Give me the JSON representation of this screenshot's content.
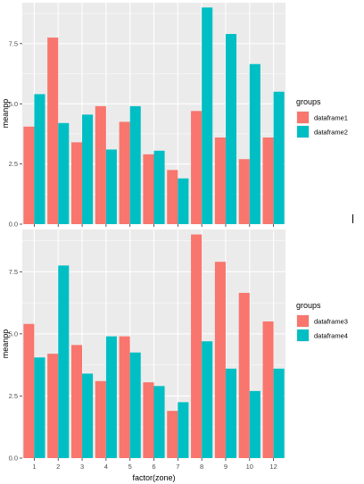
{
  "chart_data": [
    {
      "type": "bar",
      "categories": [
        "1",
        "2",
        "3",
        "4",
        "5",
        "6",
        "7",
        "8",
        "9",
        "10",
        "12"
      ],
      "xlabel": "",
      "ylabel": "meanpp",
      "ylim": [
        0,
        9.2
      ],
      "yticks": [
        0.0,
        2.5,
        5.0,
        7.5
      ],
      "ytick_labels": [
        "0.0",
        "2.5",
        "5.0",
        "7.5"
      ],
      "show_x_tick_labels": false,
      "grid": true,
      "legend": {
        "title": "groups",
        "position": "right"
      },
      "series": [
        {
          "name": "dataframe1",
          "color": "#F8766D",
          "values": [
            4.05,
            7.75,
            3.4,
            4.9,
            4.25,
            2.9,
            2.25,
            4.7,
            3.6,
            2.7,
            3.6
          ]
        },
        {
          "name": "dataframe2",
          "color": "#00BFC4",
          "values": [
            5.4,
            4.2,
            4.55,
            3.1,
            4.9,
            3.05,
            1.9,
            9.0,
            7.9,
            6.65,
            5.5
          ]
        }
      ]
    },
    {
      "type": "bar",
      "categories": [
        "1",
        "2",
        "3",
        "4",
        "5",
        "6",
        "7",
        "8",
        "9",
        "10",
        "12"
      ],
      "xlabel": "factor(zone)",
      "ylabel": "meanpp",
      "ylim": [
        0,
        9.2
      ],
      "yticks": [
        0.0,
        2.5,
        5.0,
        7.5
      ],
      "ytick_labels": [
        "0.0",
        "2.5",
        "5.0",
        "7.5"
      ],
      "show_x_tick_labels": true,
      "grid": true,
      "legend": {
        "title": "groups",
        "position": "right"
      },
      "series": [
        {
          "name": "dataframe3",
          "color": "#F8766D",
          "values": [
            5.4,
            4.2,
            4.55,
            3.1,
            4.9,
            3.05,
            1.9,
            9.0,
            7.9,
            6.65,
            5.5
          ]
        },
        {
          "name": "dataframe4",
          "color": "#00BFC4",
          "values": [
            4.05,
            7.75,
            3.4,
            4.9,
            4.25,
            2.9,
            2.25,
            4.7,
            3.6,
            2.7,
            3.6
          ]
        }
      ]
    }
  ]
}
